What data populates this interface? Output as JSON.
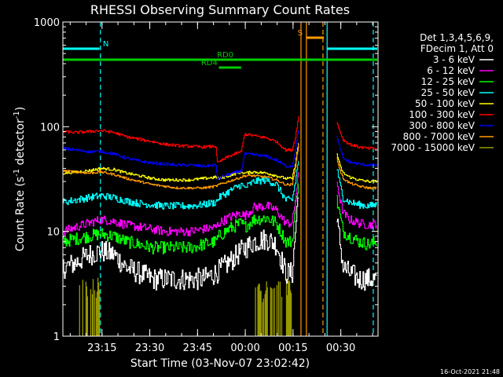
{
  "chart_data": {
    "type": "line",
    "title": "RHESSI Observing Summary Count Rates",
    "xlabel": "Start Time (03-Nov-07 23:02:42)",
    "ylabel": "Count Rate (s⁻¹ detector⁻¹)",
    "ylabel_parts": [
      "Count Rate (s",
      "-1",
      " detector",
      "-1",
      ")"
    ],
    "x_unit": "minutes after 23:02:42",
    "xlim": [
      0,
      99
    ],
    "ylim": [
      1,
      1000
    ],
    "yscale": "log",
    "x_ticks": [
      {
        "label": "23:15",
        "x": 12.3
      },
      {
        "label": "23:30",
        "x": 27.3
      },
      {
        "label": "23:45",
        "x": 42.3
      },
      {
        "label": "00:00",
        "x": 57.3
      },
      {
        "label": "00:15",
        "x": 72.3
      },
      {
        "label": "00:30",
        "x": 87.3
      }
    ],
    "y_ticks": [
      {
        "label": "1",
        "y": 1
      },
      {
        "label": "10",
        "y": 10
      },
      {
        "label": "100",
        "y": 100
      },
      {
        "label": "1000",
        "y": 1000
      }
    ],
    "legend_placement": "top-right",
    "legend_header": [
      "Det 1,3,4,5,6,9,",
      "FDecim 1, Att 0"
    ],
    "series": [
      {
        "name": "3 - 6 keV",
        "color": "#ffffff",
        "x": [
          0,
          4,
          8,
          12,
          16,
          20,
          24,
          28,
          32,
          36,
          40,
          44,
          48,
          52,
          56,
          60,
          64,
          67,
          70,
          72,
          73,
          74
        ],
        "y": [
          4.5,
          5,
          6,
          6.5,
          6,
          4.5,
          4,
          3.5,
          3.5,
          3.5,
          3.5,
          3.5,
          4,
          5,
          6.5,
          8,
          8.5,
          7.5,
          4,
          4,
          10,
          26
        ],
        "x2": [
          86,
          87,
          88,
          90,
          93,
          96,
          98.5
        ],
        "y2": [
          12,
          8,
          4.5,
          4,
          3.5,
          3.5,
          3.5
        ],
        "noise": 0.25
      },
      {
        "name": "6 - 12 keV",
        "color": "#ff00ff",
        "x": [
          0,
          4,
          8,
          12,
          16,
          20,
          24,
          28,
          32,
          36,
          40,
          44,
          48,
          49,
          52,
          56,
          57,
          60,
          64,
          67,
          70,
          72,
          73,
          74
        ],
        "y": [
          10,
          11,
          12,
          13,
          12.5,
          11.5,
          11,
          10.5,
          10,
          10,
          10,
          10.5,
          11,
          12,
          13.5,
          15,
          14,
          17,
          17.5,
          16,
          12,
          12,
          20,
          35
        ],
        "x2": [
          86,
          87,
          88,
          90,
          93,
          96,
          98.5
        ],
        "y2": [
          30,
          20,
          15,
          13,
          12,
          11.5,
          12
        ],
        "noise": 0.1
      },
      {
        "name": "12 - 25 keV",
        "color": "#00ff00",
        "x": [
          0,
          4,
          8,
          12,
          16,
          20,
          24,
          28,
          32,
          36,
          40,
          44,
          48,
          49,
          52,
          56,
          57,
          60,
          64,
          67,
          70,
          72,
          73,
          74
        ],
        "y": [
          8,
          8.5,
          9,
          9.5,
          9,
          8,
          7.5,
          7,
          7,
          7,
          7,
          7.5,
          8,
          9,
          10.5,
          12,
          11,
          13,
          13.5,
          12,
          8,
          8,
          18,
          30
        ],
        "x2": [
          86,
          87,
          88,
          90,
          93,
          96,
          98.5
        ],
        "y2": [
          20,
          14,
          10,
          9,
          8,
          7.5,
          8
        ],
        "noise": 0.14
      },
      {
        "name": "25 - 50 keV",
        "color": "#00ffff",
        "x": [
          0,
          4,
          8,
          12,
          16,
          20,
          24,
          28,
          32,
          36,
          40,
          44,
          48,
          49,
          52,
          56,
          57,
          60,
          64,
          67,
          70,
          72,
          73,
          74
        ],
        "y": [
          19,
          20,
          21,
          22,
          21,
          19.5,
          18.5,
          18,
          17.5,
          17.5,
          17.5,
          18,
          19,
          21,
          24,
          28,
          26,
          30,
          31,
          28,
          20,
          20,
          30,
          48
        ],
        "x2": [
          86,
          87,
          88,
          90,
          93,
          96,
          98.5
        ],
        "y2": [
          40,
          28,
          21,
          19,
          18,
          17.5,
          18
        ],
        "noise": 0.08
      },
      {
        "name": "50 - 100 keV",
        "color": "#ffff00",
        "x": [
          0,
          4,
          8,
          12,
          16,
          20,
          24,
          28,
          32,
          36,
          40,
          44,
          48,
          49,
          52,
          56,
          57,
          60,
          64,
          67,
          70,
          72,
          73,
          74
        ],
        "y": [
          36,
          37,
          38,
          40,
          39,
          36,
          34,
          32,
          31,
          31,
          31,
          32,
          33,
          32,
          34,
          37,
          36,
          37,
          36,
          34,
          32,
          32,
          45,
          70
        ],
        "x2": [
          86,
          87,
          88,
          90,
          93,
          96,
          98.5
        ],
        "y2": [
          55,
          42,
          36,
          33,
          31,
          30,
          30
        ],
        "noise": 0.03
      },
      {
        "name": "100 - 300 keV",
        "color": "#ff0000",
        "x": [
          0,
          4,
          8,
          12,
          16,
          20,
          24,
          28,
          32,
          36,
          40,
          44,
          48,
          48.5,
          52,
          56,
          57,
          60,
          64,
          67,
          70,
          72,
          73,
          74
        ],
        "y": [
          90,
          88,
          90,
          92,
          88,
          80,
          76,
          72,
          68,
          66,
          65,
          64,
          65,
          45,
          52,
          58,
          85,
          82,
          78,
          72,
          60,
          60,
          80,
          125
        ],
        "x2": [
          86,
          87,
          88,
          90,
          93,
          96,
          98.5
        ],
        "y2": [
          110,
          90,
          75,
          68,
          64,
          62,
          62
        ],
        "noise": 0.03
      },
      {
        "name": "300 - 800 keV",
        "color": "#0000ff",
        "x": [
          0,
          4,
          8,
          12,
          16,
          20,
          24,
          28,
          32,
          36,
          40,
          44,
          48,
          48.5,
          52,
          56,
          57,
          60,
          64,
          67,
          70,
          72,
          73,
          74
        ],
        "y": [
          62,
          60,
          58,
          58,
          55,
          50,
          47,
          45,
          44,
          43,
          43,
          42,
          43,
          32,
          35,
          38,
          55,
          54,
          52,
          48,
          42,
          42,
          60,
          95
        ],
        "x2": [
          86,
          87,
          88,
          90,
          93,
          96,
          98.5
        ],
        "y2": [
          80,
          62,
          50,
          46,
          44,
          43,
          43
        ],
        "noise": 0.03
      },
      {
        "name": "800 - 7000 keV",
        "color": "#ff9900",
        "x": [
          0,
          4,
          8,
          12,
          16,
          20,
          24,
          28,
          32,
          36,
          40,
          44,
          48,
          49,
          52,
          56,
          57,
          60,
          64,
          67,
          70,
          72,
          73,
          74
        ],
        "y": [
          38,
          37,
          36,
          37,
          35,
          32,
          30,
          28,
          27,
          26,
          26,
          26,
          27,
          28,
          30,
          33,
          34,
          34,
          33,
          31,
          28,
          28,
          42,
          68
        ],
        "x2": [
          86,
          87,
          88,
          90,
          93,
          96,
          98.5
        ],
        "y2": [
          50,
          38,
          32,
          29,
          27,
          26,
          26
        ],
        "noise": 0.025
      },
      {
        "name": "7000 - 15000 keV",
        "color": "#999900",
        "bursts": [
          [
            5,
            11.5
          ],
          [
            60,
            73
          ]
        ],
        "baseline": 1,
        "level": 2.6,
        "noise": 0
      }
    ],
    "flags": [
      {
        "label": "N",
        "color": "#00ffff",
        "segments": [
          [
            -2,
            11.5
          ],
          [
            83,
            99
          ]
        ],
        "level": 0.96
      },
      {
        "label": "S",
        "color": "#ff9900",
        "segments": [
          [
            76.5,
            82
          ]
        ],
        "level": 0.995
      },
      {
        "label": "RD0",
        "color": "#00cc00",
        "segments": [
          [
            0,
            99
          ]
        ],
        "level": 0.925,
        "label_at": 51
      },
      {
        "label": "RD4",
        "color": "#00cc00",
        "segments": [
          [
            49,
            56
          ]
        ],
        "level": 0.9,
        "label_at": 46
      }
    ],
    "vertical_lines": [
      {
        "x": 11.8,
        "color": "#00ffff",
        "style": "dashed"
      },
      {
        "x": 97.5,
        "color": "#00ffff",
        "style": "dashed"
      },
      {
        "x": 83,
        "color": "#00ffff",
        "style": "solid"
      },
      {
        "x": 74.8,
        "color": "#ff9900",
        "style": "solid"
      },
      {
        "x": 76.5,
        "color": "#ff9900",
        "style": "solid"
      },
      {
        "x": 81.7,
        "color": "#ff9900",
        "style": "dashed"
      }
    ]
  },
  "timestamp": "16-Oct-2021 21:48"
}
